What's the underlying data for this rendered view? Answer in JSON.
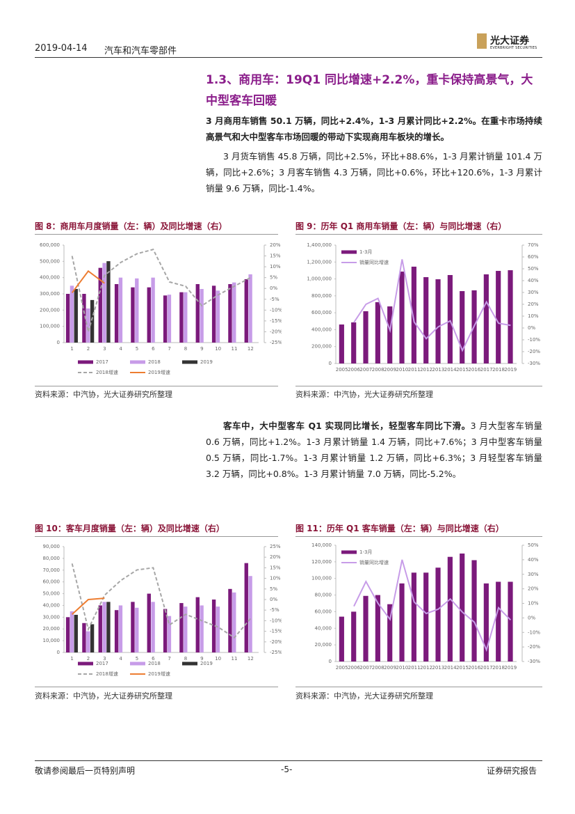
{
  "header": {
    "date": "2019-04-14",
    "sector": "汽车和汽车零部件",
    "logo": "光大证券",
    "logo_en": "EVERBRIGHT SECURITIES"
  },
  "heading": "1.3、商用车：19Q1 同比增速+2.2%，重卡保持高景气，大中型客车回暖",
  "paragraphs": [
    "3 月商用车销售 50.1 万辆，同比+2.4%，1-3 月累计同比+2.2%。在重卡市场持续高景气和大中型客车市场回暖的带动下实现商用车板块的增长。",
    "3 月货车销售 45.8 万辆，同比+2.5%，环比+88.6%，1-3 月累计销量 101.4 万辆，同比+2.6%；3 月客车销售 4.3 万辆，同比+0.6%，环比+120.6%，1-3 月累计销量 9.6 万辆，同比-1.4%。"
  ],
  "paragraph3": {
    "lead": "客车中，大中型客车 Q1 实现同比增长，轻型客车同比下滑。",
    "text": "3 月大型客车销量 0.6 万辆，同比+1.2%。1-3 月累计销量 1.4 万辆，同比+7.6%；3 月中型客车销量 0.5 万辆，同比-1.7%。1-3 月累计销量 1.2 万辆，同比+6.3%；3 月轻型客车销量 3.2 万辆，同比+0.8%。1-3 月累计销量 7.0 万辆，同比-5.2%。"
  },
  "footer": {
    "left": "敬请参阅最后一页特别声明",
    "page": "-5-",
    "right": "证券研究报告"
  },
  "chart_data": [
    {
      "type": "bar",
      "title": "图 8：商用车月度销量（左：辆）及同比增速（右）",
      "source": "资料来源：中汽协，光大证券研究所整理",
      "legend": "bottom",
      "grid": false,
      "categories": [
        "1",
        "2",
        "3",
        "4",
        "5",
        "6",
        "7",
        "8",
        "9",
        "10",
        "11",
        "12"
      ],
      "ylim": [
        0,
        600000
      ],
      "yticks": [
        0,
        {
          "value": 100000,
          "label": "100,000"
        },
        {
          "value": 200000,
          "label": "200,000"
        },
        {
          "value": 300000,
          "label": "300,000"
        },
        {
          "value": 400000,
          "label": "400,000"
        },
        {
          "value": 500000,
          "label": "500,000"
        },
        {
          "value": 600000,
          "label": "600,000"
        }
      ],
      "y2lim": [
        -25,
        20
      ],
      "y2ticks": [
        {
          "value": -25,
          "label": "-25%"
        },
        {
          "value": -20,
          "label": "-20%"
        },
        {
          "value": -15,
          "label": "-15%"
        },
        {
          "value": -10,
          "label": "-10%"
        },
        {
          "value": -5,
          "label": "-5%"
        },
        {
          "value": 0,
          "label": "0%"
        },
        {
          "value": 5,
          "label": "5%"
        },
        {
          "value": 10,
          "label": "10%"
        },
        {
          "value": 15,
          "label": "15%"
        },
        {
          "value": 20,
          "label": "20%"
        }
      ],
      "series": [
        {
          "name": "2017",
          "type": "bar",
          "color": "#7b1a7b",
          "values": [
            300000,
            300000,
            460000,
            360000,
            340000,
            340000,
            290000,
            310000,
            360000,
            350000,
            360000,
            390000
          ]
        },
        {
          "name": "2018",
          "type": "bar",
          "color": "#c79ce8",
          "values": [
            350000,
            210000,
            490000,
            400000,
            395000,
            400000,
            295000,
            310000,
            330000,
            320000,
            370000,
            420000
          ]
        },
        {
          "name": "2019",
          "type": "bar",
          "color": "#333333",
          "values": [
            330000,
            262000,
            501000,
            null,
            null,
            null,
            null,
            null,
            null,
            null,
            null,
            null
          ]
        },
        {
          "name": "2018增速",
          "type": "line",
          "dashed": true,
          "axis": "y2",
          "color": "#a6a6a6",
          "values": [
            15,
            -20,
            6,
            12,
            16,
            18,
            3,
            1,
            -8,
            -3,
            1,
            5
          ]
        },
        {
          "name": "2019增速",
          "type": "line",
          "axis": "y2",
          "color": "#ed7d31",
          "values": [
            -2,
            8,
            2.4,
            null,
            null,
            null,
            null,
            null,
            null,
            null,
            null,
            null
          ]
        }
      ]
    },
    {
      "type": "bar",
      "title": "图 9：历年 Q1 商用车销量（左：辆）与同比增速（右）",
      "source": "资料来源：中汽协，光大证券研究所整理",
      "legend": "upper left",
      "grid": false,
      "categories": [
        "2005",
        "2006",
        "2007",
        "2008",
        "2009",
        "2010",
        "2011",
        "2012",
        "2013",
        "2014",
        "2015",
        "2016",
        "2017",
        "2018",
        "2019"
      ],
      "ylim": [
        0,
        1400000
      ],
      "yticks": [
        0,
        {
          "value": 200000,
          "label": "200,000"
        },
        {
          "value": 400000,
          "label": "400,000"
        },
        {
          "value": 600000,
          "label": "600,000"
        },
        {
          "value": 800000,
          "label": "800,000"
        },
        {
          "value": 1000000,
          "label": "1,000,000"
        },
        {
          "value": 1200000,
          "label": "1,200,000"
        },
        {
          "value": 1400000,
          "label": "1,400,000"
        }
      ],
      "y2lim": [
        -30,
        70
      ],
      "y2ticks": [
        {
          "value": -30,
          "label": "-30%"
        },
        {
          "value": -20,
          "label": "-20%"
        },
        {
          "value": -10,
          "label": "-10%"
        },
        {
          "value": 0,
          "label": "0%"
        },
        {
          "value": 10,
          "label": "10%"
        },
        {
          "value": 20,
          "label": "20%"
        },
        {
          "value": 30,
          "label": "30%"
        },
        {
          "value": 40,
          "label": "40%"
        },
        {
          "value": 50,
          "label": "50%"
        },
        {
          "value": 60,
          "label": "60%"
        },
        {
          "value": 70,
          "label": "70%"
        }
      ],
      "series": [
        {
          "name": "1-3月",
          "type": "bar",
          "color": "#7b1a7b",
          "values": [
            461000,
            486000,
            618000,
            725000,
            675000,
            1087000,
            1145000,
            1021000,
            996000,
            1046000,
            856000,
            865000,
            1054000,
            1095000,
            1103000
          ]
        },
        {
          "name": "销量同比增速",
          "type": "line",
          "axis": "y2",
          "color": "#c79ce8",
          "values": [
            null,
            4.7,
            20,
            25,
            -2,
            58,
            5,
            -9,
            1,
            6,
            -19,
            2,
            22,
            4,
            2.2
          ]
        }
      ]
    },
    {
      "type": "bar",
      "title": "图 10：客车月度销量（左：辆）及同比增速（右）",
      "source": "资料来源：中汽协，光大证券研究所整理",
      "legend": "bottom",
      "grid": false,
      "categories": [
        "1",
        "2",
        "3",
        "4",
        "5",
        "6",
        "7",
        "8",
        "9",
        "10",
        "11",
        "12"
      ],
      "ylim": [
        0,
        90000
      ],
      "yticks": [
        0,
        {
          "value": 10000,
          "label": "10,000"
        },
        {
          "value": 20000,
          "label": "20,000"
        },
        {
          "value": 30000,
          "label": "30,000"
        },
        {
          "value": 40000,
          "label": "40,000"
        },
        {
          "value": 50000,
          "label": "50,000"
        },
        {
          "value": 60000,
          "label": "60,000"
        },
        {
          "value": 70000,
          "label": "70,000"
        },
        {
          "value": 80000,
          "label": "80,000"
        },
        {
          "value": 90000,
          "label": "90,000"
        }
      ],
      "y2lim": [
        -25,
        25
      ],
      "y2ticks": [
        {
          "value": -25,
          "label": "-25%"
        },
        {
          "value": -20,
          "label": "-20%"
        },
        {
          "value": -15,
          "label": "-15%"
        },
        {
          "value": -10,
          "label": "-10%"
        },
        {
          "value": -5,
          "label": "-5%"
        },
        {
          "value": 0,
          "label": "0%"
        },
        {
          "value": 5,
          "label": "5%"
        },
        {
          "value": 10,
          "label": "10%"
        },
        {
          "value": 15,
          "label": "15%"
        },
        {
          "value": 20,
          "label": "20%"
        },
        {
          "value": 25,
          "label": "25%"
        }
      ],
      "series": [
        {
          "name": "2017",
          "type": "bar",
          "color": "#7b1a7b",
          "values": [
            30000,
            25000,
            40000,
            36000,
            43000,
            50000,
            37000,
            42000,
            47000,
            45000,
            54000,
            76000
          ]
        },
        {
          "name": "2018",
          "type": "bar",
          "color": "#c79ce8",
          "values": [
            35000,
            18000,
            43000,
            40000,
            38000,
            43000,
            31000,
            39000,
            40000,
            39000,
            51000,
            65000
          ]
        },
        {
          "name": "2019",
          "type": "bar",
          "color": "#333333",
          "values": [
            32000,
            24000,
            43000,
            null,
            null,
            null,
            null,
            null,
            null,
            null,
            null,
            null
          ]
        },
        {
          "name": "2018增速",
          "type": "line",
          "dashed": true,
          "axis": "y2",
          "color": "#a6a6a6",
          "values": [
            17,
            -14,
            2,
            9,
            14,
            15,
            -12,
            -7,
            -10,
            -13,
            -18,
            -9
          ]
        },
        {
          "name": "2019增速",
          "type": "line",
          "axis": "y2",
          "color": "#ed7d31",
          "values": [
            -7,
            0,
            0.6,
            null,
            null,
            null,
            null,
            null,
            null,
            null,
            null,
            null
          ]
        }
      ]
    },
    {
      "type": "bar",
      "title": "图 11：历年 Q1 客车销量（左：辆）与同比增速（右）",
      "source": "资料来源：中汽协，光大证券研究所整理",
      "legend": "upper left",
      "grid": false,
      "categories": [
        "2005",
        "2006",
        "2007",
        "2008",
        "2009",
        "2010",
        "2011",
        "2012",
        "2013",
        "2014",
        "2015",
        "2016",
        "2017",
        "2018",
        "2019"
      ],
      "ylim": [
        0,
        140000
      ],
      "yticks": [
        0,
        {
          "value": 20000,
          "label": "20,000"
        },
        {
          "value": 40000,
          "label": "40,000"
        },
        {
          "value": 60000,
          "label": "60,000"
        },
        {
          "value": 80000,
          "label": "80,000"
        },
        {
          "value": 100000,
          "label": "100,000"
        },
        {
          "value": 120000,
          "label": "120,000"
        },
        {
          "value": 140000,
          "label": "140,000"
        }
      ],
      "y2lim": [
        -30,
        50
      ],
      "y2ticks": [
        {
          "value": -30,
          "label": "-30%"
        },
        {
          "value": -20,
          "label": "-20%"
        },
        {
          "value": -10,
          "label": "-10%"
        },
        {
          "value": 0,
          "label": "0%"
        },
        {
          "value": 10,
          "label": "10%"
        },
        {
          "value": 20,
          "label": "20%"
        },
        {
          "value": 30,
          "label": "30%"
        },
        {
          "value": 40,
          "label": "40%"
        },
        {
          "value": 50,
          "label": "50%"
        }
      ],
      "series": [
        {
          "name": "1-3月",
          "type": "bar",
          "color": "#7b1a7b",
          "values": [
            54000,
            60000,
            79000,
            80000,
            69000,
            94000,
            107000,
            107000,
            113000,
            126000,
            130000,
            122000,
            94000,
            96000,
            96000
          ]
        },
        {
          "name": "销量同比增速",
          "type": "line",
          "axis": "y2",
          "color": "#c79ce8",
          "values": [
            null,
            8,
            25,
            10,
            -1,
            40,
            11,
            3,
            6,
            13,
            4,
            -3,
            -22,
            7,
            -1.4
          ]
        }
      ]
    }
  ]
}
